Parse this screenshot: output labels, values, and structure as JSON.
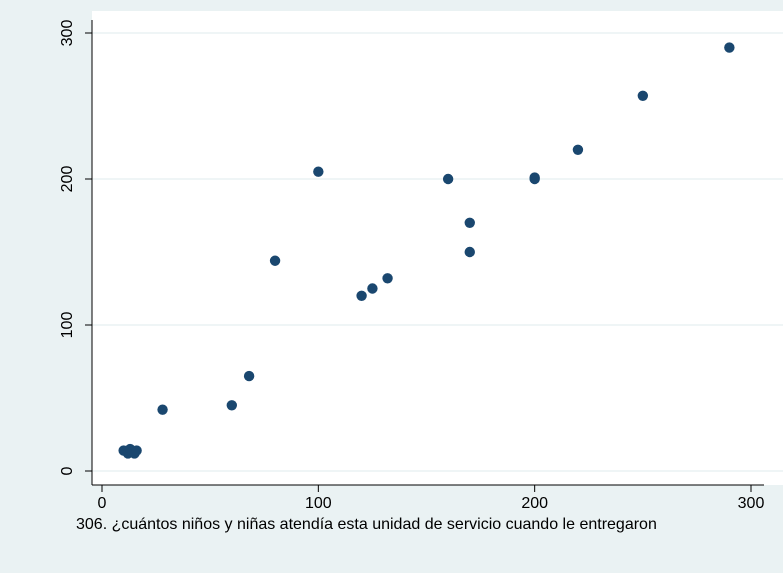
{
  "chart_data": {
    "type": "scatter",
    "title": "",
    "xlabel": "306. ¿cuántos niños y niñas atendía esta unidad de servicio cuando le entregaron",
    "ylabel": "",
    "xlim": [
      0,
      300
    ],
    "ylim": [
      0,
      300
    ],
    "x_ticks": [
      0,
      100,
      200,
      300
    ],
    "y_ticks": [
      0,
      100,
      200,
      300
    ],
    "grid": "horizontal",
    "legend": "none",
    "series": [
      {
        "color": "#1a476f",
        "points": [
          {
            "x": 10,
            "y": 14
          },
          {
            "x": 12,
            "y": 12
          },
          {
            "x": 13,
            "y": 15
          },
          {
            "x": 14,
            "y": 13
          },
          {
            "x": 15,
            "y": 12
          },
          {
            "x": 16,
            "y": 14
          },
          {
            "x": 28,
            "y": 42
          },
          {
            "x": 60,
            "y": 45
          },
          {
            "x": 68,
            "y": 65
          },
          {
            "x": 80,
            "y": 144
          },
          {
            "x": 100,
            "y": 205
          },
          {
            "x": 120,
            "y": 120
          },
          {
            "x": 125,
            "y": 125
          },
          {
            "x": 132,
            "y": 132
          },
          {
            "x": 160,
            "y": 200
          },
          {
            "x": 170,
            "y": 170
          },
          {
            "x": 170,
            "y": 150
          },
          {
            "x": 200,
            "y": 200
          },
          {
            "x": 200,
            "y": 201
          },
          {
            "x": 220,
            "y": 220
          },
          {
            "x": 250,
            "y": 257
          },
          {
            "x": 290,
            "y": 290
          }
        ]
      }
    ]
  },
  "colors": {
    "outer_background": "#eaf2f3",
    "plot_background": "#ffffff",
    "grid": "#eaf2f3",
    "axis": "#000000",
    "marker": "#1a476f"
  }
}
